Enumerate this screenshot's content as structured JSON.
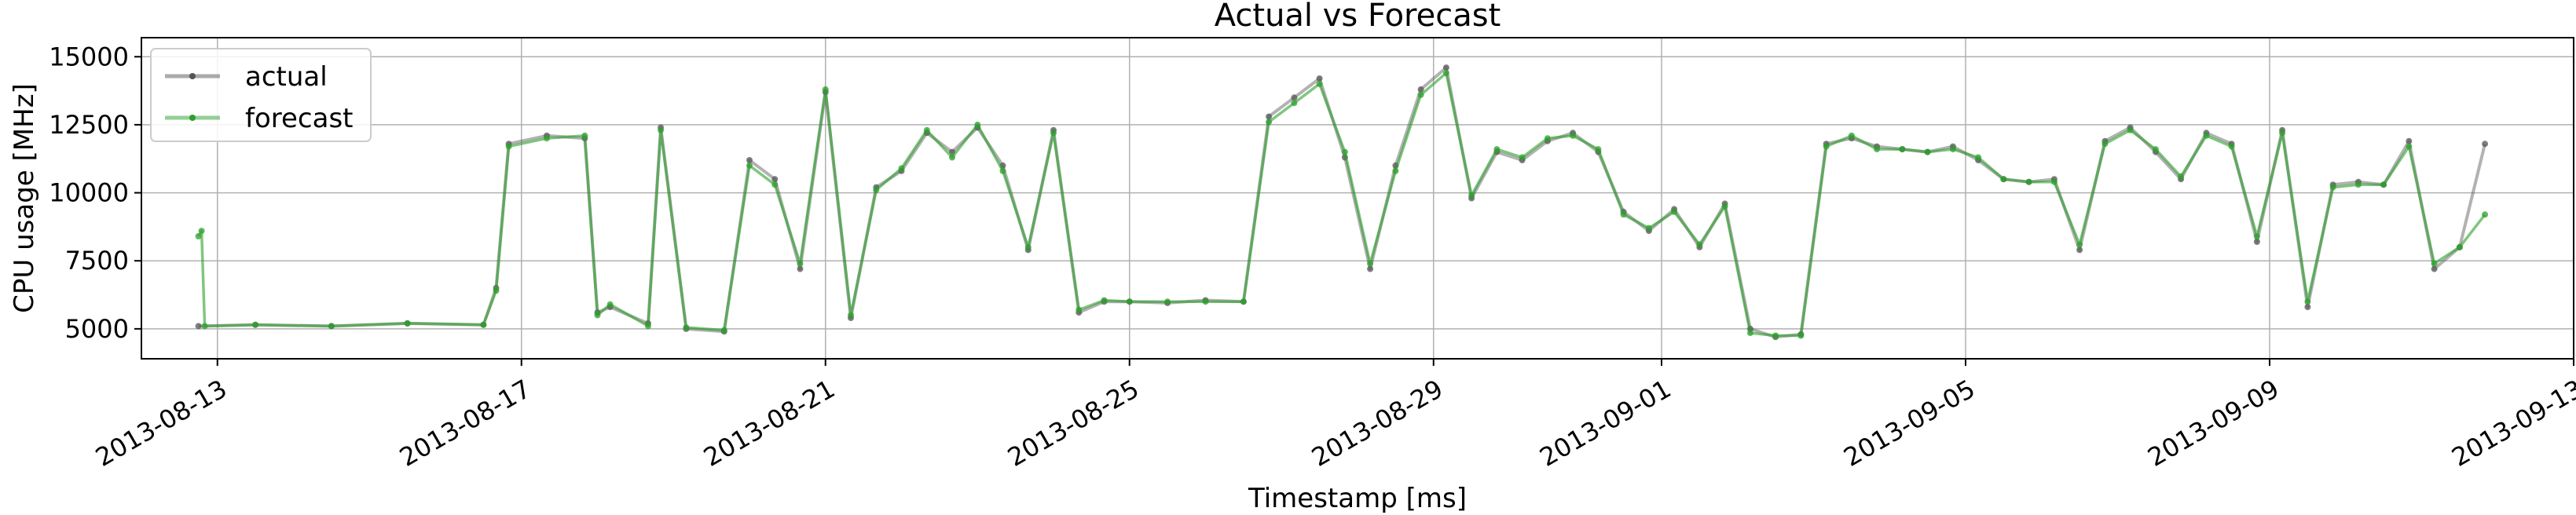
{
  "chart_data": {
    "type": "line",
    "title": "Actual vs Forecast",
    "xlabel": "Timestamp [ms]",
    "ylabel": "CPU usage [MHz]",
    "x_ticks": [
      "2013-08-13",
      "2013-08-17",
      "2013-08-21",
      "2013-08-25",
      "2013-08-29",
      "2013-09-01",
      "2013-09-05",
      "2013-09-09",
      "2013-09-13"
    ],
    "y_ticks": [
      "5000",
      "7500",
      "10000",
      "12500",
      "15000"
    ],
    "xlim": [
      "2013-08-12",
      "2013-09-13"
    ],
    "ylim": [
      3900,
      15700
    ],
    "grid": true,
    "legend": "top-left",
    "series": [
      {
        "name": "actual",
        "color": "#555555",
        "x": [
          "2013-08-12T18:00",
          "2013-08-13T12:00",
          "2013-08-14T12:00",
          "2013-08-15T12:00",
          "2013-08-16T12:00",
          "2013-08-16T16:00",
          "2013-08-16T20:00",
          "2013-08-17T08:00",
          "2013-08-17T20:00",
          "2013-08-18T00:00",
          "2013-08-18T04:00",
          "2013-08-18T16:00",
          "2013-08-18T20:00",
          "2013-08-19T04:00",
          "2013-08-19T16:00",
          "2013-08-20T00:00",
          "2013-08-20T08:00",
          "2013-08-20T16:00",
          "2013-08-21T00:00",
          "2013-08-21T08:00",
          "2013-08-21T16:00",
          "2013-08-22T00:00",
          "2013-08-22T08:00",
          "2013-08-22T16:00",
          "2013-08-23T00:00",
          "2013-08-23T08:00",
          "2013-08-23T16:00",
          "2013-08-24T00:00",
          "2013-08-24T08:00",
          "2013-08-24T16:00",
          "2013-08-25T00:00",
          "2013-08-25T12:00",
          "2013-08-26T00:00",
          "2013-08-26T12:00",
          "2013-08-26T20:00",
          "2013-08-27T04:00",
          "2013-08-27T12:00",
          "2013-08-27T20:00",
          "2013-08-28T04:00",
          "2013-08-28T12:00",
          "2013-08-28T20:00",
          "2013-08-29T04:00",
          "2013-08-29T12:00",
          "2013-08-29T20:00",
          "2013-08-30T04:00",
          "2013-08-30T12:00",
          "2013-08-30T20:00",
          "2013-08-31T04:00",
          "2013-08-31T12:00",
          "2013-08-31T20:00",
          "2013-09-01T04:00",
          "2013-09-01T12:00",
          "2013-09-01T20:00",
          "2013-09-02T04:00",
          "2013-09-02T12:00",
          "2013-09-02T20:00",
          "2013-09-03T04:00",
          "2013-09-03T12:00",
          "2013-09-03T20:00",
          "2013-09-04T04:00",
          "2013-09-04T12:00",
          "2013-09-04T20:00",
          "2013-09-05T04:00",
          "2013-09-05T12:00",
          "2013-09-05T20:00",
          "2013-09-06T04:00",
          "2013-09-06T12:00",
          "2013-09-06T20:00",
          "2013-09-07T04:00",
          "2013-09-07T12:00",
          "2013-09-07T20:00",
          "2013-09-08T04:00",
          "2013-09-08T12:00",
          "2013-09-08T20:00",
          "2013-09-09T04:00",
          "2013-09-09T12:00",
          "2013-09-09T20:00",
          "2013-09-10T04:00",
          "2013-09-10T12:00",
          "2013-09-10T20:00",
          "2013-09-11T04:00",
          "2013-09-11T12:00",
          "2013-09-11T20:00"
        ],
        "values": [
          5100,
          5150,
          5100,
          5200,
          5150,
          6500,
          11800,
          12100,
          12000,
          5600,
          5800,
          5200,
          12400,
          5000,
          4900,
          11200,
          10500,
          7200,
          13700,
          5400,
          10200,
          10800,
          12200,
          11500,
          12400,
          11000,
          7900,
          12300,
          5600,
          6000,
          6000,
          5950,
          6050,
          6000,
          12800,
          13500,
          14200,
          11300,
          7200,
          11000,
          13800,
          14600,
          9800,
          11500,
          11200,
          11900,
          12200,
          11500,
          9300,
          8600,
          9400,
          8000,
          9600,
          5000,
          4700,
          4800,
          11800,
          12000,
          11700,
          11600,
          11500,
          11700,
          11200,
          10500,
          10400,
          10500,
          7900,
          11900,
          12400,
          11500,
          10500,
          12200,
          11800,
          8200,
          12300,
          5800,
          10300,
          10400,
          10300,
          11900,
          7200,
          8000,
          11800
        ]
      },
      {
        "name": "forecast",
        "color": "#2ca02c",
        "x": [
          "2013-08-12T18:00",
          "2013-08-12T19:00",
          "2013-08-12T20:00",
          "2013-08-13T12:00",
          "2013-08-14T12:00",
          "2013-08-15T12:00",
          "2013-08-16T12:00",
          "2013-08-16T16:00",
          "2013-08-16T20:00",
          "2013-08-17T08:00",
          "2013-08-17T20:00",
          "2013-08-18T00:00",
          "2013-08-18T04:00",
          "2013-08-18T16:00",
          "2013-08-18T20:00",
          "2013-08-19T04:00",
          "2013-08-19T16:00",
          "2013-08-20T00:00",
          "2013-08-20T08:00",
          "2013-08-20T16:00",
          "2013-08-21T00:00",
          "2013-08-21T08:00",
          "2013-08-21T16:00",
          "2013-08-22T00:00",
          "2013-08-22T08:00",
          "2013-08-22T16:00",
          "2013-08-23T00:00",
          "2013-08-23T08:00",
          "2013-08-23T16:00",
          "2013-08-24T00:00",
          "2013-08-24T08:00",
          "2013-08-24T16:00",
          "2013-08-25T00:00",
          "2013-08-25T12:00",
          "2013-08-26T00:00",
          "2013-08-26T12:00",
          "2013-08-26T20:00",
          "2013-08-27T04:00",
          "2013-08-27T12:00",
          "2013-08-27T20:00",
          "2013-08-28T04:00",
          "2013-08-28T12:00",
          "2013-08-28T20:00",
          "2013-08-29T04:00",
          "2013-08-29T12:00",
          "2013-08-29T20:00",
          "2013-08-30T04:00",
          "2013-08-30T12:00",
          "2013-08-30T20:00",
          "2013-08-31T04:00",
          "2013-08-31T12:00",
          "2013-08-31T20:00",
          "2013-09-01T04:00",
          "2013-09-01T12:00",
          "2013-09-01T20:00",
          "2013-09-02T04:00",
          "2013-09-02T12:00",
          "2013-09-02T20:00",
          "2013-09-03T04:00",
          "2013-09-03T12:00",
          "2013-09-03T20:00",
          "2013-09-04T04:00",
          "2013-09-04T12:00",
          "2013-09-04T20:00",
          "2013-09-05T04:00",
          "2013-09-05T12:00",
          "2013-09-05T20:00",
          "2013-09-06T04:00",
          "2013-09-06T12:00",
          "2013-09-06T20:00",
          "2013-09-07T04:00",
          "2013-09-07T12:00",
          "2013-09-07T20:00",
          "2013-09-08T04:00",
          "2013-09-08T12:00",
          "2013-09-08T20:00",
          "2013-09-09T04:00",
          "2013-09-09T12:00",
          "2013-09-09T20:00",
          "2013-09-10T04:00",
          "2013-09-10T12:00",
          "2013-09-10T20:00",
          "2013-09-11T04:00",
          "2013-09-11T12:00",
          "2013-09-11T20:00"
        ],
        "values": [
          8400,
          8600,
          5100,
          5150,
          5100,
          5200,
          5150,
          6400,
          11700,
          12000,
          12100,
          5500,
          5900,
          5100,
          12300,
          5050,
          4950,
          11000,
          10300,
          7400,
          13800,
          5500,
          10100,
          10900,
          12300,
          11300,
          12500,
          10800,
          8000,
          12200,
          5700,
          6050,
          6000,
          6000,
          6000,
          6000,
          12600,
          13300,
          14000,
          11500,
          7400,
          10800,
          13600,
          14400,
          9900,
          11600,
          11300,
          12000,
          12100,
          11600,
          9200,
          8700,
          9300,
          8100,
          9500,
          4850,
          4750,
          4750,
          11700,
          12100,
          11600,
          11600,
          11500,
          11600,
          11300,
          10500,
          10400,
          10400,
          8100,
          11800,
          12300,
          11600,
          10600,
          12100,
          11700,
          8400,
          12200,
          6000,
          10200,
          10300,
          10300,
          11700,
          7400,
          8000,
          9200
        ]
      }
    ]
  }
}
